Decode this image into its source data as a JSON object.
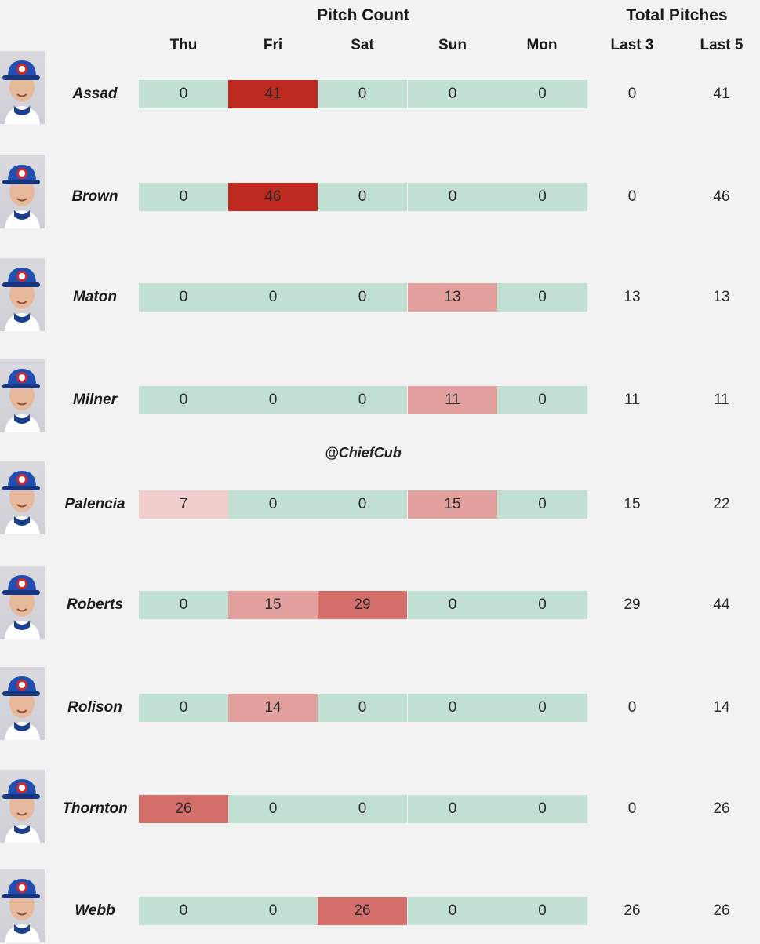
{
  "header": {
    "pitch_count_label": "Pitch Count",
    "total_pitches_label": "Total Pitches",
    "days": [
      "Thu",
      "Fri",
      "Sat",
      "Sun",
      "Mon"
    ],
    "totals": [
      "Last 3",
      "Last 5"
    ]
  },
  "watermark": "@ChiefCub",
  "colors": {
    "zero": "#c2e0d1",
    "low": "#f0cccc",
    "mid": "#e2a09f",
    "high": "#d36e6b",
    "max": "#bf2a20"
  },
  "chart_data": {
    "type": "table",
    "columns": [
      "Thu",
      "Fri",
      "Sat",
      "Sun",
      "Mon",
      "Last 3",
      "Last 5"
    ],
    "rows": [
      {
        "name": "Assad",
        "values": [
          0,
          41,
          0,
          0,
          0
        ],
        "last3": 0,
        "last5": 41
      },
      {
        "name": "Brown",
        "values": [
          0,
          46,
          0,
          0,
          0
        ],
        "last3": 0,
        "last5": 46
      },
      {
        "name": "Maton",
        "values": [
          0,
          0,
          0,
          13,
          0
        ],
        "last3": 13,
        "last5": 13
      },
      {
        "name": "Milner",
        "values": [
          0,
          0,
          0,
          11,
          0
        ],
        "last3": 11,
        "last5": 11
      },
      {
        "name": "Palencia",
        "values": [
          7,
          0,
          0,
          15,
          0
        ],
        "last3": 15,
        "last5": 22
      },
      {
        "name": "Roberts",
        "values": [
          0,
          15,
          29,
          0,
          0
        ],
        "last3": 29,
        "last5": 44
      },
      {
        "name": "Rolison",
        "values": [
          0,
          14,
          0,
          0,
          0
        ],
        "last3": 0,
        "last5": 14
      },
      {
        "name": "Thornton",
        "values": [
          26,
          0,
          0,
          0,
          0
        ],
        "last3": 0,
        "last5": 26
      },
      {
        "name": "Webb",
        "values": [
          0,
          0,
          26,
          0,
          0
        ],
        "last3": 26,
        "last5": 26
      }
    ]
  }
}
